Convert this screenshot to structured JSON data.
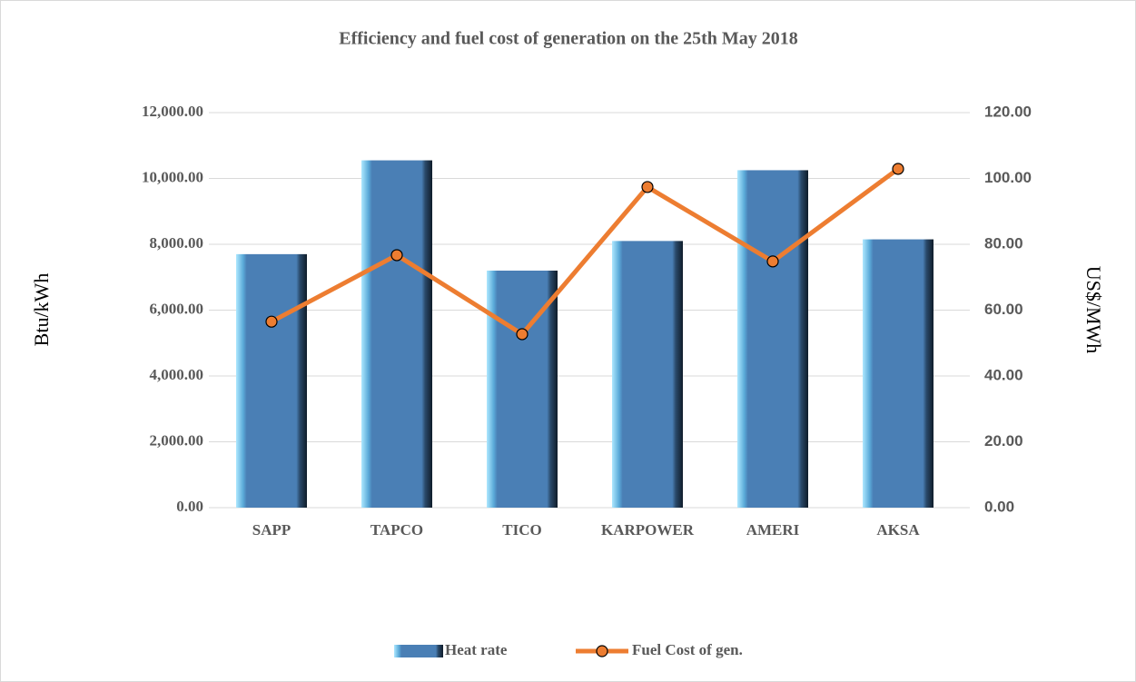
{
  "chart_data": {
    "type": "bar",
    "title": "Efficiency and fuel cost of generation on the 25th May 2018",
    "categories": [
      "SAPP",
      "TAPCO",
      "TICO",
      "KARPOWER",
      "AMERI",
      "AKSA"
    ],
    "series": [
      {
        "name": "Heat rate",
        "type": "bar",
        "color": "#4a7fb5",
        "values": [
          7700,
          10550,
          7200,
          8100,
          10250,
          8150
        ]
      },
      {
        "name": "Fuel Cost of gen.",
        "type": "line",
        "axis": "y2",
        "color": "#ed7d31",
        "values": [
          56.5,
          76.7,
          52.7,
          97.4,
          74.8,
          102.9
        ]
      }
    ],
    "ylabel": "Btu/kWh",
    "y2label": "US$/MWh",
    "ylim": [
      0,
      12000
    ],
    "yticks": [
      {
        "value": 0,
        "label": "0.00"
      },
      {
        "value": 2000,
        "label": "2,000.00"
      },
      {
        "value": 4000,
        "label": "4,000.00"
      },
      {
        "value": 6000,
        "label": "6,000.00"
      },
      {
        "value": 8000,
        "label": "8,000.00"
      },
      {
        "value": 10000,
        "label": "10,000.00"
      },
      {
        "value": 12000,
        "label": "12,000.00"
      }
    ],
    "y2lim": [
      0,
      120
    ],
    "y2ticks": [
      {
        "value": 0,
        "label": "0.00"
      },
      {
        "value": 20,
        "label": "20.00"
      },
      {
        "value": 40,
        "label": "40.00"
      },
      {
        "value": 60,
        "label": "60.00"
      },
      {
        "value": 80,
        "label": "80.00"
      },
      {
        "value": 100,
        "label": "100.00"
      },
      {
        "value": 120,
        "label": "120.00"
      }
    ],
    "grid": true,
    "legend": "bottom"
  }
}
